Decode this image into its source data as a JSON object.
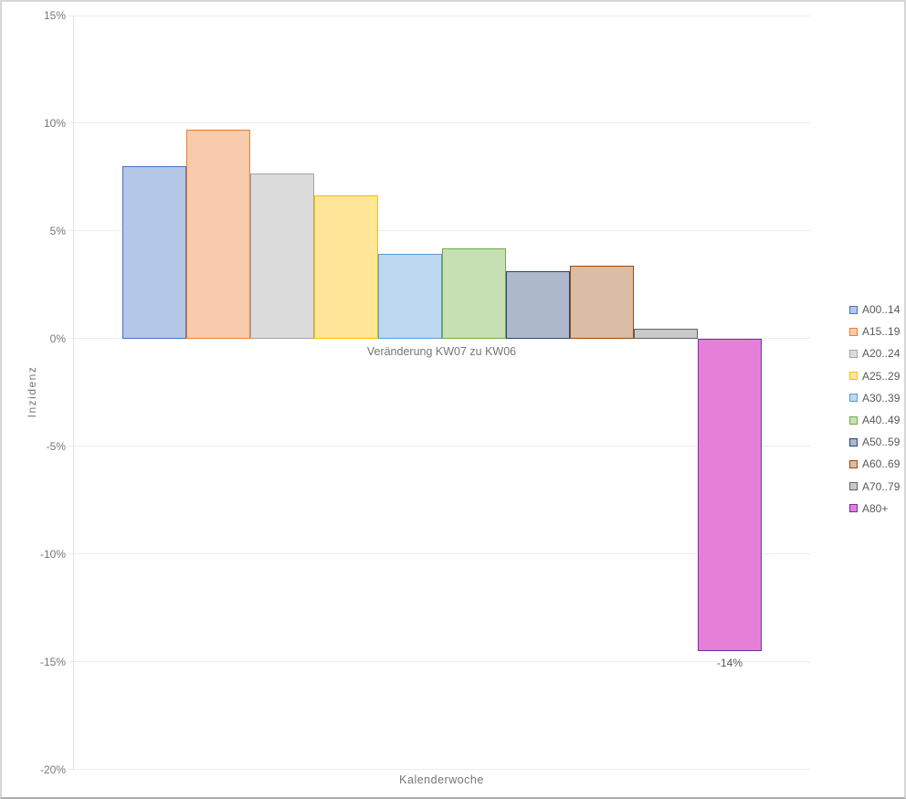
{
  "chart_data": {
    "type": "bar",
    "title": "Veränderung KW07 zu KW06",
    "xlabel": "Kalenderwoche",
    "ylabel": "Inzidenz",
    "ylim": [
      -20,
      15
    ],
    "grid": true,
    "legend_position": "right",
    "yticks": [
      {
        "label": "15%",
        "value": 15
      },
      {
        "label": "10%",
        "value": 10
      },
      {
        "label": "5%",
        "value": 5
      },
      {
        "label": "0%",
        "value": 0
      },
      {
        "label": "-5%",
        "value": -5
      },
      {
        "label": "-10%",
        "value": -10
      },
      {
        "label": "-15%",
        "value": -15
      },
      {
        "label": "-20%",
        "value": -20
      }
    ],
    "series": [
      {
        "name": "A00..14",
        "value": 8.0,
        "fill": "#b4c7e7",
        "border": "#4472c4"
      },
      {
        "name": "A15..19",
        "value": 9.7,
        "fill": "#f8cbad",
        "border": "#ed7d31"
      },
      {
        "name": "A20..24",
        "value": 7.65,
        "fill": "#dbdbdb",
        "border": "#a5a5a5"
      },
      {
        "name": "A25..29",
        "value": 6.65,
        "fill": "#ffe699",
        "border": "#ffc000"
      },
      {
        "name": "A30..39",
        "value": 3.95,
        "fill": "#bdd7ee",
        "border": "#5b9bd5"
      },
      {
        "name": "A40..49",
        "value": 4.2,
        "fill": "#c6e0b4",
        "border": "#70ad47"
      },
      {
        "name": "A50..59",
        "value": 3.15,
        "fill": "#adb9ca",
        "border": "#264478"
      },
      {
        "name": "A60..69",
        "value": 3.4,
        "fill": "#dbbca4",
        "border": "#9e480e"
      },
      {
        "name": "A70..79",
        "value": 0.45,
        "fill": "#c9c9c9",
        "border": "#636363"
      },
      {
        "name": "A80+",
        "value": -14.5,
        "fill": "#e480d8",
        "border": "#7030a0",
        "data_label": "-14%"
      }
    ]
  }
}
